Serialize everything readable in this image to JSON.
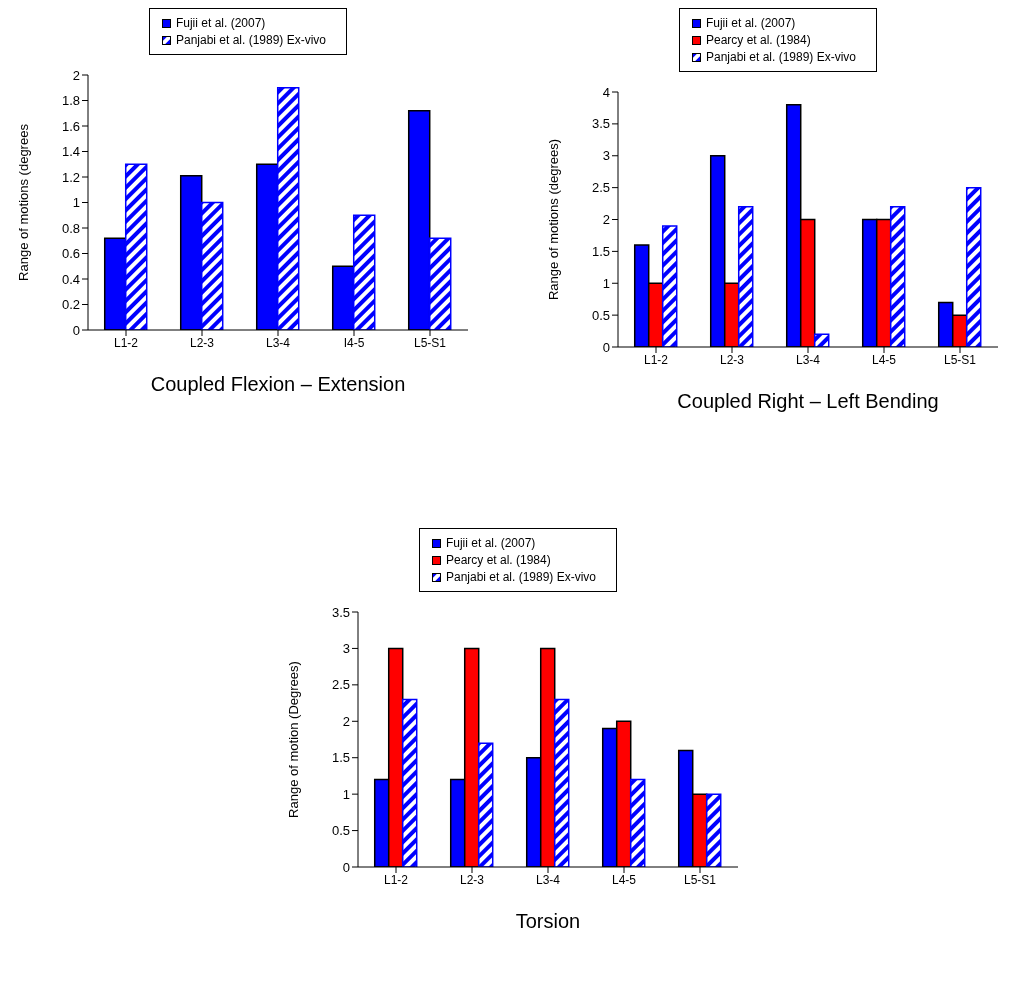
{
  "chart_data": [
    {
      "type": "bar",
      "xlabel": "Coupled Flexion – Extension",
      "ylabel": "Range of motions (degrees",
      "categories": [
        "L1-2",
        "L2-3",
        "L3-4",
        "I4-5",
        "L5-S1"
      ],
      "ylim": [
        0,
        2
      ],
      "yticks": [
        0,
        0.2,
        0.4,
        0.6,
        0.8,
        1,
        1.2,
        1.4,
        1.6,
        1.8,
        2
      ],
      "legend": "top",
      "series": [
        {
          "name": "Fujii et al. (2007)",
          "color": "#0000ff",
          "values": [
            0.72,
            1.21,
            1.3,
            0.5,
            1.72
          ]
        },
        {
          "name": "Panjabi et al. (1989) Ex-vivo",
          "color": "#0000ff",
          "values": [
            1.3,
            1.0,
            1.9,
            0.9,
            0.72
          ]
        }
      ]
    },
    {
      "type": "bar",
      "xlabel": "Coupled Right – Left Bending",
      "ylabel": "Range of motions (degrees)",
      "categories": [
        "L1-2",
        "L2-3",
        "L3-4",
        "L4-5",
        "L5-S1"
      ],
      "ylim": [
        0,
        4
      ],
      "yticks": [
        0,
        0.5,
        1,
        1.5,
        2,
        2.5,
        3,
        3.5,
        4
      ],
      "legend": "top",
      "series": [
        {
          "name": "Fujii et al. (2007)",
          "color": "#0000ff",
          "values": [
            1.6,
            3,
            3.8,
            2,
            0.7
          ]
        },
        {
          "name": "Pearcy et al. (1984)",
          "color": "#ff0000",
          "values": [
            1,
            1,
            2,
            2,
            0.5
          ]
        },
        {
          "name": "Panjabi et al. (1989) Ex-vivo",
          "color": "#0000ff",
          "values": [
            1.9,
            2.2,
            0.2,
            2.2,
            2.5
          ]
        }
      ]
    },
    {
      "type": "bar",
      "xlabel": "Torsion",
      "ylabel": "Range of motion (Degrees)",
      "categories": [
        "L1-2",
        "L2-3",
        "L3-4",
        "L4-5",
        "L5-S1"
      ],
      "ylim": [
        0,
        3.5
      ],
      "yticks": [
        0,
        0.5,
        1,
        1.5,
        2,
        2.5,
        3,
        3.5
      ],
      "legend": "top",
      "series": [
        {
          "name": "Fujii et al. (2007)",
          "color": "#0000ff",
          "values": [
            1.2,
            1.2,
            1.5,
            1.9,
            1.6
          ]
        },
        {
          "name": "Pearcy et al. (1984)",
          "color": "#ff0000",
          "values": [
            3,
            3,
            3,
            2,
            1
          ]
        },
        {
          "name": "Panjabi et al. (1989) Ex-vivo",
          "color": "#0000ff",
          "values": [
            2.3,
            1.7,
            2.3,
            1.2,
            1
          ]
        }
      ]
    }
  ]
}
